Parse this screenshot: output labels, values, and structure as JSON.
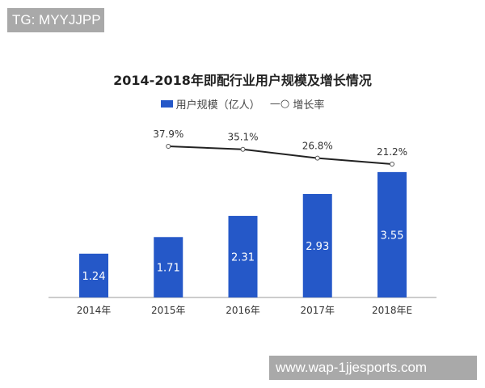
{
  "watermark_top": "TG: MYYJJPP",
  "watermark_bottom": "www.wap-1jjesports.com",
  "chart_data": {
    "type": "bar",
    "title": "2014-2018年即配行业用户规模及增长情况",
    "categories": [
      "2014年",
      "2015年",
      "2016年",
      "2017年",
      "2018年E"
    ],
    "series": [
      {
        "name": "用户规模（亿人）",
        "type": "bar",
        "values": [
          1.24,
          1.71,
          2.31,
          2.93,
          3.55
        ],
        "labels": [
          "1.24",
          "1.71",
          "2.31",
          "2.93",
          "3.55"
        ],
        "color": "#2558c8"
      },
      {
        "name": "增长率",
        "type": "line",
        "values": [
          null,
          37.9,
          35.1,
          26.8,
          21.2
        ],
        "labels": [
          "",
          "37.9%",
          "35.1%",
          "26.8%",
          "21.2%"
        ],
        "color": "#222222"
      }
    ],
    "legend_position": "top",
    "grid": false
  }
}
